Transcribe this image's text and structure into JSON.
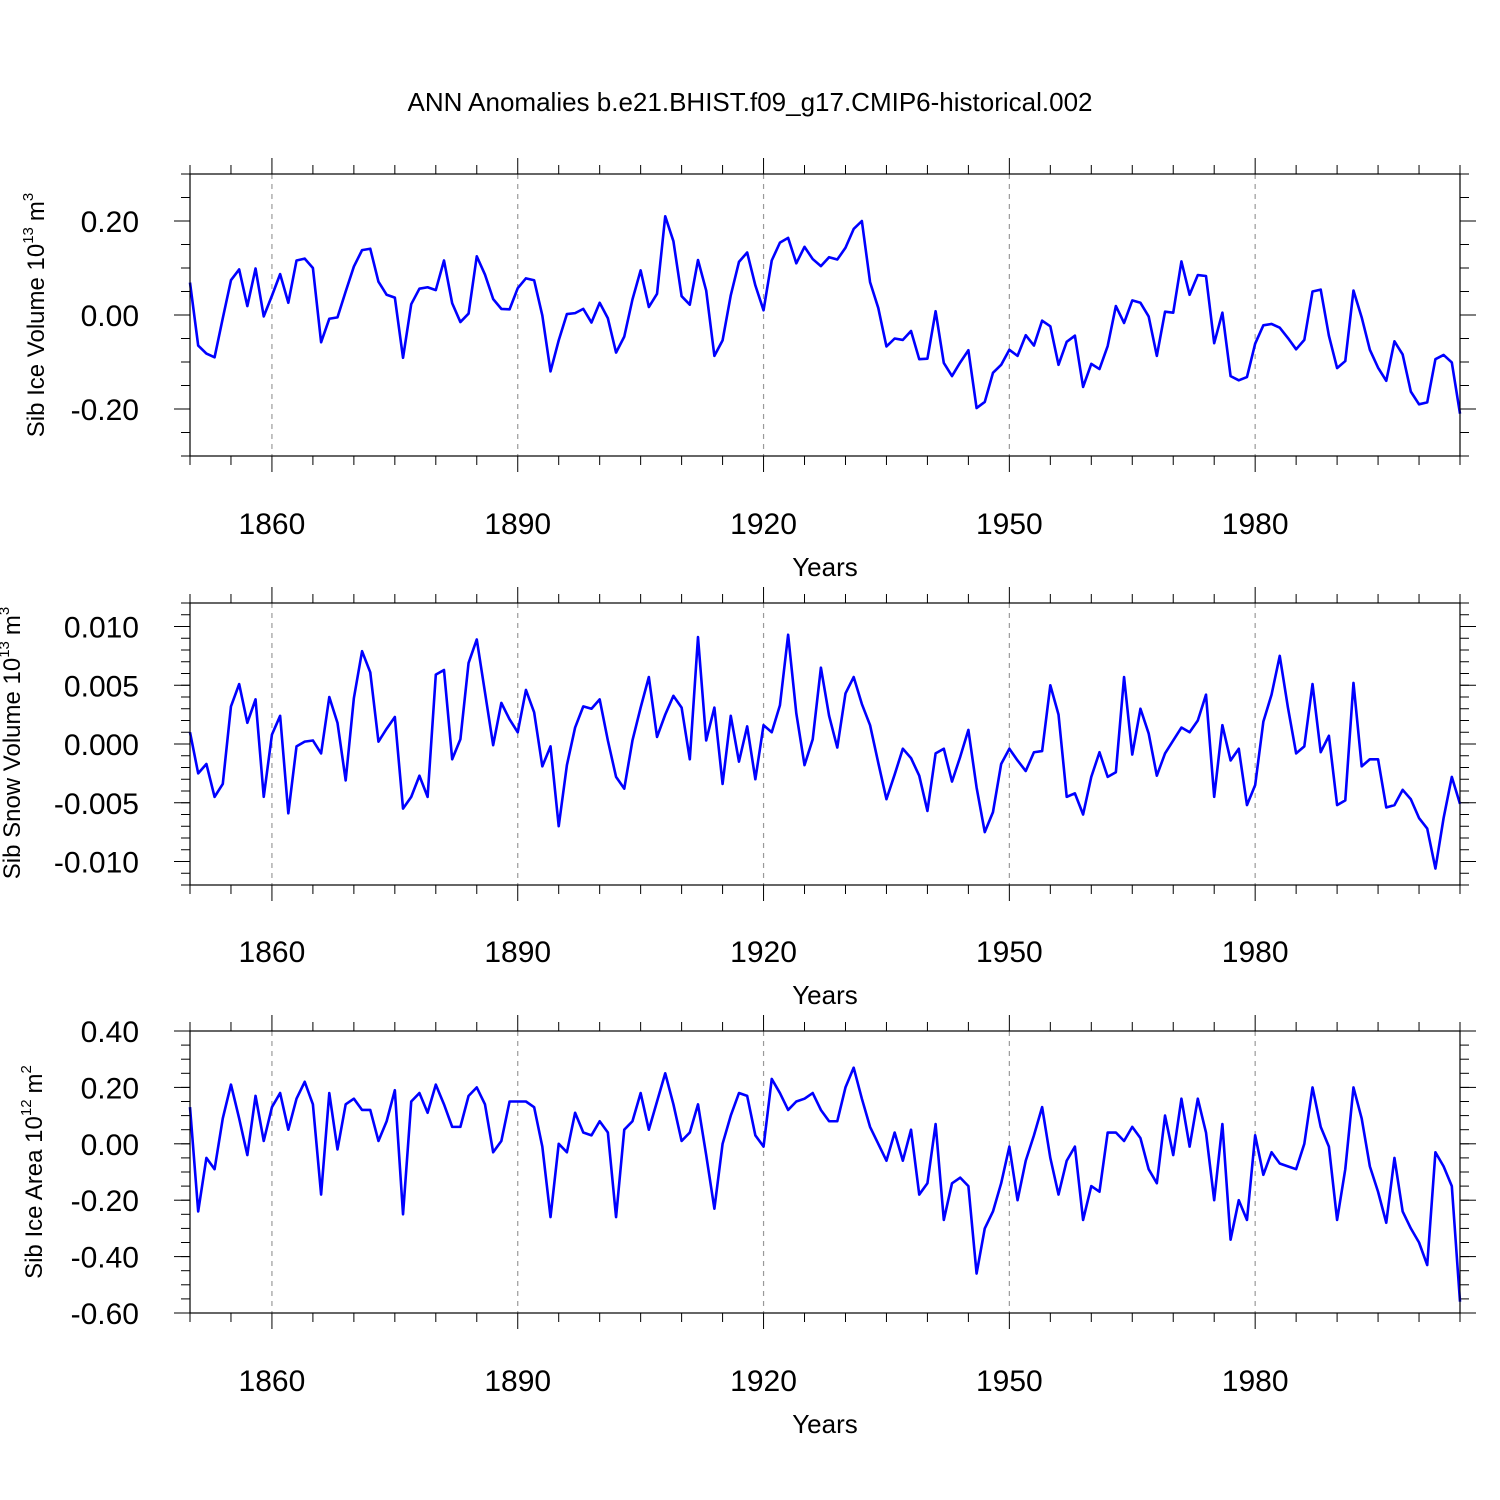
{
  "figure": {
    "title": "ANN Anomalies b.e21.BHIST.f09_g17.CMIP6-historical.002"
  },
  "chart_data": [
    {
      "type": "line",
      "title": "ANN Anomalies b.e21.BHIST.f09_g17.CMIP6-historical.002",
      "ylabel": "Sib Ice Volume 10",
      "ylabel_unit_exp": "13",
      "ylabel_unit": "m",
      "ylabel_unit_pow": "3",
      "xlabel": "Years",
      "xlim": [
        1850,
        2005
      ],
      "ylim": [
        -0.3,
        0.3
      ],
      "xticks": [
        "1860",
        "1890",
        "1920",
        "1950",
        "1980"
      ],
      "yticks": [
        "0.20",
        "0.00",
        "-0.20"
      ],
      "ytick_values": [
        0.2,
        0.0,
        -0.2
      ],
      "line_color": "#0000ff",
      "x_start": 1850,
      "values": [
        0.069,
        -0.065,
        -0.082,
        -0.09,
        -0.007,
        0.074,
        0.097,
        0.019,
        0.099,
        -0.003,
        0.041,
        0.087,
        0.026,
        0.116,
        0.12,
        0.1,
        -0.058,
        -0.008,
        -0.005,
        0.05,
        0.103,
        0.138,
        0.141,
        0.071,
        0.043,
        0.037,
        -0.091,
        0.023,
        0.056,
        0.059,
        0.053,
        0.116,
        0.025,
        -0.015,
        0.003,
        0.125,
        0.086,
        0.034,
        0.013,
        0.012,
        0.057,
        0.078,
        0.074,
        -0.001,
        -0.12,
        -0.054,
        0.002,
        0.004,
        0.013,
        -0.016,
        0.026,
        -0.007,
        -0.08,
        -0.046,
        0.033,
        0.095,
        0.017,
        0.045,
        0.21,
        0.157,
        0.04,
        0.022,
        0.117,
        0.052,
        -0.087,
        -0.054,
        0.042,
        0.113,
        0.133,
        0.063,
        0.01,
        0.116,
        0.154,
        0.164,
        0.11,
        0.145,
        0.119,
        0.104,
        0.123,
        0.118,
        0.143,
        0.183,
        0.2,
        0.07,
        0.015,
        -0.067,
        -0.05,
        -0.053,
        -0.034,
        -0.094,
        -0.093,
        0.008,
        -0.102,
        -0.13,
        -0.101,
        -0.075,
        -0.198,
        -0.185,
        -0.123,
        -0.106,
        -0.074,
        -0.087,
        -0.043,
        -0.065,
        -0.012,
        -0.024,
        -0.106,
        -0.057,
        -0.044,
        -0.153,
        -0.104,
        -0.115,
        -0.066,
        0.019,
        -0.017,
        0.031,
        0.026,
        -0.003,
        -0.087,
        0.007,
        0.005,
        0.114,
        0.043,
        0.085,
        0.083,
        -0.06,
        0.005,
        -0.13,
        -0.139,
        -0.132,
        -0.061,
        -0.022,
        -0.019,
        -0.027,
        -0.049,
        -0.073,
        -0.053,
        0.05,
        0.054,
        -0.044,
        -0.113,
        -0.098,
        0.052,
        -0.005,
        -0.074,
        -0.112,
        -0.14,
        -0.056,
        -0.084,
        -0.163,
        -0.19,
        -0.186,
        -0.094,
        -0.085,
        -0.101,
        -0.21
      ]
    },
    {
      "type": "line",
      "ylabel": "Sib Snow Volume 10",
      "ylabel_unit_exp": "13",
      "ylabel_unit": "m",
      "ylabel_unit_pow": "3",
      "xlabel": "Years",
      "xlim": [
        1850,
        2005
      ],
      "ylim": [
        -0.012,
        0.012
      ],
      "xticks": [
        "1860",
        "1890",
        "1920",
        "1950",
        "1980"
      ],
      "yticks": [
        "0.010",
        "0.005",
        "0.000",
        "-0.005",
        "-0.010"
      ],
      "ytick_values": [
        0.01,
        0.005,
        0.0,
        -0.005,
        -0.01
      ],
      "line_color": "#0000ff",
      "x_start": 1850,
      "values": [
        0.001,
        -0.0025,
        -0.0017,
        -0.0045,
        -0.0034,
        0.0032,
        0.0051,
        0.0018,
        0.0038,
        -0.0045,
        0.0008,
        0.0024,
        -0.0059,
        -0.0002,
        0.0002,
        0.0003,
        -0.0008,
        0.004,
        0.0018,
        -0.0031,
        0.0039,
        0.0079,
        0.0061,
        0.0002,
        0.0013,
        0.0023,
        -0.0055,
        -0.0045,
        -0.0027,
        -0.0045,
        0.0059,
        0.0063,
        -0.0013,
        0.0004,
        0.0069,
        0.0089,
        0.0044,
        -0.0001,
        0.0035,
        0.0021,
        0.001,
        0.0046,
        0.0027,
        -0.0019,
        -0.0002,
        -0.007,
        -0.0018,
        0.0014,
        0.0032,
        0.003,
        0.0038,
        0.0003,
        -0.0028,
        -0.0038,
        0.0003,
        0.0031,
        0.0057,
        0.0006,
        0.0025,
        0.0041,
        0.0031,
        -0.0013,
        0.0091,
        0.0003,
        0.0031,
        -0.0034,
        0.0024,
        -0.0015,
        0.0015,
        -0.003,
        0.0016,
        0.001,
        0.0033,
        0.0093,
        0.0026,
        -0.0018,
        0.0004,
        0.0065,
        0.0024,
        -0.0003,
        0.0043,
        0.0057,
        0.0034,
        0.0016,
        -0.0016,
        -0.0047,
        -0.0026,
        -0.0004,
        -0.0012,
        -0.0027,
        -0.0057,
        -0.0008,
        -0.0004,
        -0.0032,
        -0.0011,
        0.0012,
        -0.0037,
        -0.0075,
        -0.0058,
        -0.0017,
        -0.0004,
        -0.0014,
        -0.0023,
        -0.0007,
        -0.0006,
        0.005,
        0.0025,
        -0.0045,
        -0.0042,
        -0.006,
        -0.0028,
        -0.0007,
        -0.0028,
        -0.0024,
        0.0057,
        -0.0009,
        0.003,
        0.0009,
        -0.0027,
        -0.0008,
        0.0003,
        0.0014,
        0.001,
        0.002,
        0.0042,
        -0.0045,
        0.0016,
        -0.0014,
        -0.0004,
        -0.0052,
        -0.0035,
        0.0019,
        0.0042,
        0.0075,
        0.0031,
        -0.0008,
        -0.0002,
        0.0051,
        -0.0007,
        0.0007,
        -0.0052,
        -0.0048,
        0.0052,
        -0.0019,
        -0.0013,
        -0.0013,
        -0.0054,
        -0.0052,
        -0.0039,
        -0.0047,
        -0.0063,
        -0.0072,
        -0.0106,
        -0.0063,
        -0.0028,
        -0.0051
      ]
    },
    {
      "type": "line",
      "ylabel": "Sib Ice Area 10",
      "ylabel_unit_exp": "12",
      "ylabel_unit": "m",
      "ylabel_unit_pow": "2",
      "xlabel": "Years",
      "xlim": [
        1850,
        2005
      ],
      "ylim": [
        -0.6,
        0.4
      ],
      "xticks": [
        "1860",
        "1890",
        "1920",
        "1950",
        "1980"
      ],
      "yticks": [
        "0.40",
        "0.20",
        "0.00",
        "-0.20",
        "-0.40",
        "-0.60"
      ],
      "ytick_values": [
        0.4,
        0.2,
        0.0,
        -0.2,
        -0.4,
        -0.6
      ],
      "line_color": "#0000ff",
      "x_start": 1850,
      "values": [
        0.13,
        -0.24,
        -0.05,
        -0.09,
        0.09,
        0.21,
        0.09,
        -0.04,
        0.17,
        0.01,
        0.13,
        0.18,
        0.05,
        0.16,
        0.22,
        0.14,
        -0.18,
        0.18,
        -0.02,
        0.14,
        0.16,
        0.12,
        0.12,
        0.01,
        0.08,
        0.19,
        -0.25,
        0.15,
        0.18,
        0.11,
        0.21,
        0.14,
        0.06,
        0.06,
        0.17,
        0.2,
        0.14,
        -0.03,
        0.01,
        0.15,
        0.15,
        0.15,
        0.13,
        -0.01,
        -0.26,
        0.0,
        -0.03,
        0.11,
        0.04,
        0.03,
        0.08,
        0.04,
        -0.26,
        0.05,
        0.08,
        0.18,
        0.05,
        0.15,
        0.25,
        0.14,
        0.01,
        0.04,
        0.14,
        -0.04,
        -0.23,
        0.0,
        0.1,
        0.18,
        0.17,
        0.03,
        -0.01,
        0.23,
        0.18,
        0.12,
        0.15,
        0.16,
        0.18,
        0.12,
        0.08,
        0.08,
        0.2,
        0.27,
        0.16,
        0.06,
        0.0,
        -0.06,
        0.04,
        -0.06,
        0.05,
        -0.18,
        -0.14,
        0.07,
        -0.27,
        -0.14,
        -0.12,
        -0.15,
        -0.46,
        -0.3,
        -0.24,
        -0.14,
        -0.01,
        -0.2,
        -0.06,
        0.03,
        0.13,
        -0.05,
        -0.18,
        -0.06,
        -0.01,
        -0.27,
        -0.15,
        -0.17,
        0.04,
        0.04,
        0.01,
        0.06,
        0.02,
        -0.09,
        -0.14,
        0.1,
        -0.04,
        0.16,
        -0.01,
        0.16,
        0.04,
        -0.2,
        0.07,
        -0.34,
        -0.2,
        -0.27,
        0.03,
        -0.11,
        -0.03,
        -0.07,
        -0.08,
        -0.09,
        0.0,
        0.2,
        0.06,
        -0.01,
        -0.27,
        -0.09,
        0.2,
        0.09,
        -0.08,
        -0.17,
        -0.28,
        -0.05,
        -0.24,
        -0.3,
        -0.35,
        -0.43,
        -0.03,
        -0.08,
        -0.15,
        -0.56
      ]
    }
  ]
}
